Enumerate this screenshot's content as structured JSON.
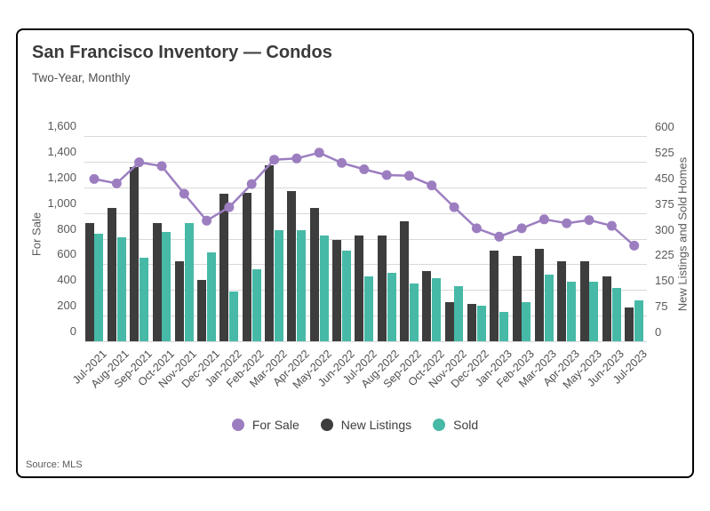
{
  "card": {
    "title": "San Francisco Inventory — Condos",
    "subtitle": "Two-Year, Monthly",
    "source": "Source: MLS"
  },
  "legend": [
    {
      "label": "For Sale",
      "color": "#9c7ec0"
    },
    {
      "label": "New Listings",
      "color": "#3d3d3d"
    },
    {
      "label": "Sold",
      "color": "#47b9a7"
    }
  ],
  "colors": {
    "for_sale_line": "#9c7ec0",
    "new_listings_bar": "#3d3d3d",
    "sold_bar": "#47b9a7",
    "gridline": "#d9d9d9"
  },
  "chart_data": {
    "type": "bar",
    "title": "San Francisco Inventory — Condos",
    "subtitle": "Two-Year, Monthly",
    "grid": true,
    "legend_position": "bottom",
    "categories": [
      "Jul-2021",
      "Aug-2021",
      "Sep-2021",
      "Oct-2021",
      "Nov-2021",
      "Dec-2021",
      "Jan-2022",
      "Feb-2022",
      "Mar-2022",
      "Apr-2022",
      "May-2022",
      "Jun-2022",
      "Jul-2022",
      "Aug-2022",
      "Sep-2022",
      "Oct-2022",
      "Nov-2022",
      "Dec-2022",
      "Jan-2023",
      "Feb-2023",
      "Mar-2023",
      "Apr-2023",
      "May-2023",
      "Jun-2023",
      "Jul-2023"
    ],
    "series": [
      {
        "name": "For Sale",
        "type": "line",
        "axis": "left",
        "color": "#9c7ec0",
        "values": [
          1265,
          1230,
          1395,
          1365,
          1150,
          940,
          1045,
          1225,
          1415,
          1425,
          1470,
          1390,
          1340,
          1295,
          1290,
          1215,
          1045,
          880,
          815,
          880,
          950,
          920,
          945,
          900,
          745
        ]
      },
      {
        "name": "New Listings",
        "type": "bar",
        "axis": "right",
        "color": "#3d3d3d",
        "values": [
          345,
          390,
          510,
          345,
          235,
          180,
          430,
          435,
          515,
          440,
          390,
          295,
          310,
          310,
          350,
          205,
          115,
          110,
          265,
          250,
          270,
          235,
          235,
          190,
          100
        ]
      },
      {
        "name": "Sold",
        "type": "bar",
        "axis": "right",
        "color": "#47b9a7",
        "values": [
          315,
          305,
          245,
          320,
          345,
          260,
          145,
          210,
          325,
          325,
          310,
          265,
          190,
          200,
          170,
          185,
          160,
          105,
          85,
          115,
          195,
          175,
          175,
          155,
          120
        ]
      }
    ],
    "left_axis": {
      "label": "For Sale",
      "range": [
        0,
        1600
      ],
      "ticks": [
        "1,600",
        "1,400",
        "1,200",
        "1,000",
        "800",
        "600",
        "400",
        "200",
        "0"
      ]
    },
    "right_axis": {
      "label": "New Listings and Sold Homes",
      "range": [
        0,
        600
      ],
      "ticks": [
        "600",
        "525",
        "450",
        "375",
        "300",
        "225",
        "150",
        "75",
        "0"
      ]
    }
  }
}
